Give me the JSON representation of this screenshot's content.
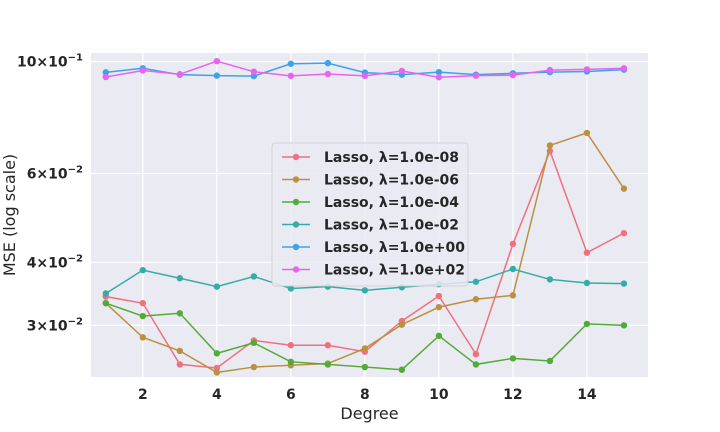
{
  "chart_data": {
    "type": "line",
    "title": "",
    "xlabel": "Degree",
    "ylabel": "MSE (log scale)",
    "yscale": "log",
    "xlim": [
      0.6,
      15.65
    ],
    "ylim": [
      0.0237,
      0.104
    ],
    "grid": true,
    "legend_position": "center",
    "x": [
      1,
      2,
      3,
      4,
      5,
      6,
      7,
      8,
      9,
      10,
      11,
      12,
      13,
      14,
      15
    ],
    "x_ticks": [
      {
        "value": 2,
        "label": "2"
      },
      {
        "value": 4,
        "label": "4"
      },
      {
        "value": 6,
        "label": "6"
      },
      {
        "value": 8,
        "label": "8"
      },
      {
        "value": 10,
        "label": "10"
      },
      {
        "value": 12,
        "label": "12"
      },
      {
        "value": 14,
        "label": "14"
      }
    ],
    "y_ticks": [
      {
        "value": 0.03,
        "mant": "3",
        "exp": "−2"
      },
      {
        "value": 0.04,
        "mant": "4",
        "exp": "−2"
      },
      {
        "value": 0.06,
        "mant": "6",
        "exp": "−2"
      },
      {
        "value": 0.1,
        "mant": "10",
        "exp": "−1"
      }
    ],
    "series": [
      {
        "name": "Lasso, λ=1.0e-08",
        "color": "#f0707e",
        "values": [
          0.0342,
          0.0332,
          0.0251,
          0.0247,
          0.028,
          0.0274,
          0.0274,
          0.0266,
          0.0306,
          0.0343,
          0.0263,
          0.0435,
          0.0665,
          0.0418,
          0.0457
        ]
      },
      {
        "name": "Lasso, λ=1.0e-06",
        "color": "#bb9040",
        "values": [
          0.0332,
          0.0284,
          0.0267,
          0.0242,
          0.0248,
          0.025,
          0.0252,
          0.027,
          0.0301,
          0.0326,
          0.0338,
          0.0344,
          0.0682,
          0.0722,
          0.056
        ]
      },
      {
        "name": "Lasso, λ=1.0e-04",
        "color": "#53ab37",
        "values": [
          0.0332,
          0.0313,
          0.0317,
          0.0264,
          0.0277,
          0.0254,
          0.0251,
          0.0248,
          0.0245,
          0.0286,
          0.0251,
          0.0258,
          0.0255,
          0.0302,
          0.03
        ]
      },
      {
        "name": "Lasso, λ=1.0e-02",
        "color": "#36ada4",
        "values": [
          0.0347,
          0.0386,
          0.0372,
          0.0358,
          0.0375,
          0.0355,
          0.0358,
          0.0352,
          0.0357,
          0.0362,
          0.0366,
          0.0388,
          0.037,
          0.0364,
          0.0363
        ]
      },
      {
        "name": "Lasso, λ=1.0e+00",
        "color": "#3ba3ec",
        "values": [
          0.0952,
          0.097,
          0.0942,
          0.0938,
          0.0936,
          0.099,
          0.0993,
          0.0951,
          0.0942,
          0.0953,
          0.0942,
          0.0948,
          0.0953,
          0.0956,
          0.0964
        ]
      },
      {
        "name": "Lasso, λ=1.0e+02",
        "color": "#e665f0",
        "values": [
          0.0932,
          0.096,
          0.0944,
          0.1002,
          0.0955,
          0.0937,
          0.0945,
          0.0937,
          0.0958,
          0.0931,
          0.0938,
          0.094,
          0.0962,
          0.0965,
          0.097
        ]
      }
    ]
  }
}
